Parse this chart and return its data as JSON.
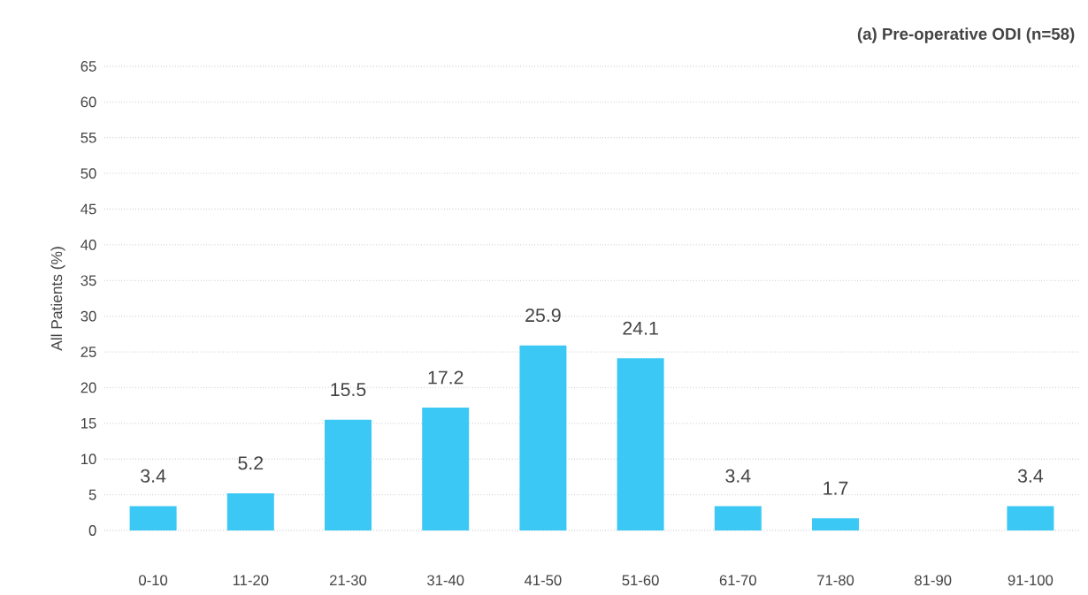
{
  "chart_data": {
    "type": "bar",
    "title": "(a) Pre-operative ODI (n=58)",
    "ylabel": "All Patients (%)",
    "categories": [
      "0-10",
      "11-20",
      "21-30",
      "31-40",
      "41-50",
      "51-60",
      "61-70",
      "71-80",
      "81-90",
      "91-100"
    ],
    "values": [
      3.4,
      5.2,
      15.5,
      17.2,
      25.9,
      24.1,
      3.4,
      1.7,
      0,
      3.4
    ],
    "value_labels": [
      "3.4",
      "5.2",
      "15.5",
      "17.2",
      "25.9",
      "24.1",
      "3.4",
      "1.7",
      null,
      "3.4"
    ],
    "color": "#3bc8f5",
    "ylim": [
      0,
      65
    ],
    "yticks": [
      0,
      5,
      10,
      15,
      20,
      25,
      30,
      35,
      40,
      45,
      50,
      55,
      60,
      65
    ],
    "grid": "y"
  }
}
